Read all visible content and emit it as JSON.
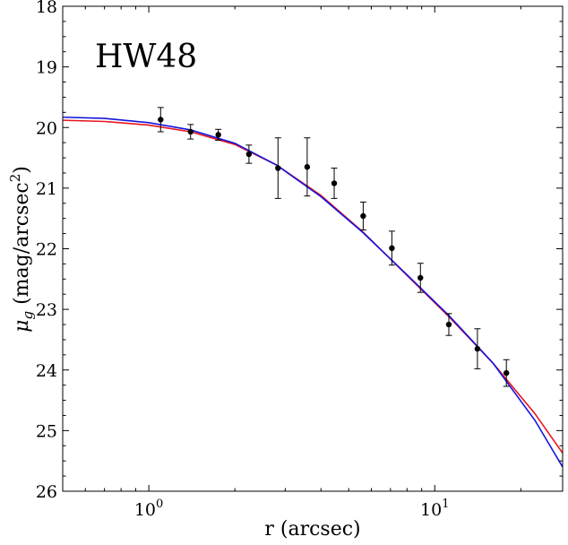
{
  "chart_data": {
    "type": "scatter",
    "annotation": "HW48",
    "xlabel": "r (arcsec)",
    "ylabel_main": "μ",
    "ylabel_sub": "g",
    "ylabel_rest": " (mag/arcsec",
    "ylabel_sup": "2",
    "ylabel_close": ")",
    "x_scale": "log",
    "xlim": [
      0.5,
      28
    ],
    "ylim": [
      26,
      18
    ],
    "y_inverted": true,
    "grid": false,
    "yticks": [
      18,
      19,
      20,
      21,
      22,
      23,
      24,
      25,
      26
    ],
    "ytick_labels": [
      "18",
      "19",
      "20",
      "21",
      "22",
      "23",
      "24",
      "25",
      "26"
    ],
    "xticks": [
      {
        "value": 1,
        "base": "10",
        "exp": "0"
      },
      {
        "value": 10,
        "base": "10",
        "exp": "1"
      }
    ],
    "points": [
      {
        "x": 1.1,
        "y": 19.87,
        "err_low": 0.2,
        "err_high": 0.2
      },
      {
        "x": 1.4,
        "y": 20.07,
        "err_low": 0.12,
        "err_high": 0.12
      },
      {
        "x": 1.75,
        "y": 20.12,
        "err_low": 0.09,
        "err_high": 0.09
      },
      {
        "x": 2.24,
        "y": 20.44,
        "err_low": 0.15,
        "err_high": 0.15
      },
      {
        "x": 2.83,
        "y": 20.67,
        "err_low": 0.5,
        "err_high": 0.5
      },
      {
        "x": 3.58,
        "y": 20.65,
        "err_low": 0.48,
        "err_high": 0.48
      },
      {
        "x": 4.45,
        "y": 20.92,
        "err_low": 0.25,
        "err_high": 0.25
      },
      {
        "x": 5.62,
        "y": 21.46,
        "err_low": 0.23,
        "err_high": 0.23
      },
      {
        "x": 7.08,
        "y": 21.99,
        "err_low": 0.28,
        "err_high": 0.28
      },
      {
        "x": 8.91,
        "y": 22.48,
        "err_low": 0.24,
        "err_high": 0.24
      },
      {
        "x": 11.2,
        "y": 23.25,
        "err_low": 0.18,
        "err_high": 0.18
      },
      {
        "x": 14.1,
        "y": 23.65,
        "err_low": 0.33,
        "err_high": 0.33
      },
      {
        "x": 17.8,
        "y": 24.05,
        "err_low": 0.22,
        "err_high": 0.22
      }
    ],
    "curves": [
      {
        "color": "#e8141e",
        "x": [
          0.5,
          0.7,
          1.0,
          1.4,
          2.0,
          2.8,
          4.0,
          5.6,
          8.0,
          11.2,
          16.0,
          22.4,
          28.0
        ],
        "y": [
          19.88,
          19.9,
          19.96,
          20.07,
          20.28,
          20.62,
          21.12,
          21.72,
          22.44,
          23.12,
          23.89,
          24.72,
          25.37
        ]
      },
      {
        "color": "#1414e0",
        "x": [
          0.5,
          0.7,
          1.0,
          1.4,
          2.0,
          2.8,
          4.0,
          5.6,
          8.0,
          11.2,
          16.0,
          22.4,
          28.0
        ],
        "y": [
          19.83,
          19.85,
          19.92,
          20.04,
          20.26,
          20.62,
          21.14,
          21.73,
          22.43,
          23.1,
          23.89,
          24.83,
          25.6
        ]
      }
    ]
  }
}
